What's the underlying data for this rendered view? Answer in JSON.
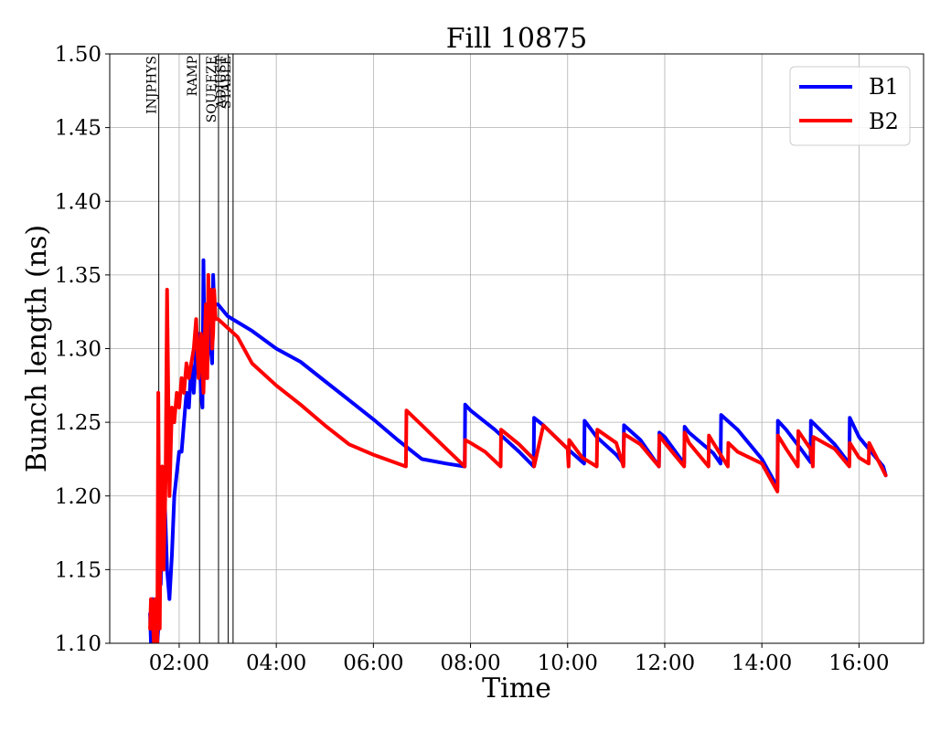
{
  "chart_data": {
    "type": "line",
    "title": "Fill 10875",
    "xlabel": "Time",
    "ylabel": "Bunch length (ns)",
    "x_unit": "hours",
    "xlim": [
      0.57,
      17.33
    ],
    "ylim": [
      1.1,
      1.5
    ],
    "x_ticks": [
      {
        "value": 2,
        "label": "02:00"
      },
      {
        "value": 4,
        "label": "04:00"
      },
      {
        "value": 6,
        "label": "06:00"
      },
      {
        "value": 8,
        "label": "08:00"
      },
      {
        "value": 10,
        "label": "10:00"
      },
      {
        "value": 12,
        "label": "12:00"
      },
      {
        "value": 14,
        "label": "14:00"
      },
      {
        "value": 16,
        "label": "16:00"
      }
    ],
    "y_ticks": [
      {
        "value": 1.1,
        "label": "1.10"
      },
      {
        "value": 1.15,
        "label": "1.15"
      },
      {
        "value": 1.2,
        "label": "1.20"
      },
      {
        "value": 1.25,
        "label": "1.25"
      },
      {
        "value": 1.3,
        "label": "1.30"
      },
      {
        "value": 1.35,
        "label": "1.35"
      },
      {
        "value": 1.4,
        "label": "1.40"
      },
      {
        "value": 1.45,
        "label": "1.45"
      },
      {
        "value": 1.5,
        "label": "1.50"
      }
    ],
    "grid": true,
    "legend_position": "top-right",
    "phases": [
      {
        "name": "INJPHYS",
        "x": 1.58
      },
      {
        "name": "RAMP",
        "x": 2.42
      },
      {
        "name": "SQUEEZE",
        "x": 2.81
      },
      {
        "name": "ADJUST",
        "x": 3.01
      },
      {
        "name": "STABLE",
        "x": 3.11
      }
    ],
    "series": [
      {
        "name": "B1",
        "color": "#0000ff",
        "x": [
          1.4,
          1.42,
          1.45,
          1.48,
          1.5,
          1.52,
          1.55,
          1.57,
          1.6,
          1.62,
          1.65,
          1.7,
          1.75,
          1.8,
          1.85,
          1.9,
          2.0,
          2.05,
          2.1,
          2.15,
          2.2,
          2.25,
          2.3,
          2.35,
          2.4,
          2.45,
          2.48,
          2.5,
          2.52,
          2.55,
          2.58,
          2.6,
          2.62,
          2.65,
          2.68,
          2.7,
          2.72,
          2.75,
          2.78,
          2.8,
          2.9,
          3.0,
          3.2,
          3.5,
          4.0,
          4.5,
          5.0,
          5.5,
          6.0,
          6.5,
          7.0,
          7.5,
          7.88,
          7.89,
          8.0,
          8.5,
          9.0,
          9.3,
          9.31,
          9.5,
          10.0,
          10.34,
          10.35,
          10.6,
          11.0,
          11.15,
          11.16,
          11.5,
          11.88,
          11.89,
          12.0,
          12.4,
          12.41,
          12.5,
          13.0,
          13.15,
          13.16,
          13.5,
          14.0,
          14.32,
          14.33,
          14.5,
          14.8,
          15.0,
          15.01,
          15.5,
          15.8,
          15.81,
          16.0,
          16.5,
          16.55
        ],
        "y": [
          1.12,
          1.1,
          1.13,
          1.105,
          1.11,
          1.12,
          1.1,
          1.11,
          1.16,
          1.14,
          1.21,
          1.2,
          1.15,
          1.13,
          1.16,
          1.2,
          1.23,
          1.23,
          1.25,
          1.27,
          1.26,
          1.29,
          1.27,
          1.3,
          1.31,
          1.27,
          1.26,
          1.36,
          1.3,
          1.28,
          1.29,
          1.31,
          1.34,
          1.3,
          1.29,
          1.35,
          1.33,
          1.33,
          1.33,
          1.33,
          1.326,
          1.322,
          1.318,
          1.312,
          1.3,
          1.291,
          1.278,
          1.265,
          1.252,
          1.238,
          1.225,
          1.222,
          1.22,
          1.262,
          1.258,
          1.245,
          1.23,
          1.22,
          1.253,
          1.248,
          1.232,
          1.222,
          1.251,
          1.24,
          1.228,
          1.222,
          1.248,
          1.238,
          1.22,
          1.243,
          1.24,
          1.222,
          1.247,
          1.243,
          1.229,
          1.222,
          1.255,
          1.245,
          1.225,
          1.206,
          1.251,
          1.245,
          1.232,
          1.223,
          1.251,
          1.235,
          1.222,
          1.253,
          1.24,
          1.22,
          1.214
        ]
      },
      {
        "name": "B2",
        "color": "#ff0000",
        "x": [
          1.4,
          1.42,
          1.45,
          1.48,
          1.5,
          1.52,
          1.55,
          1.57,
          1.6,
          1.62,
          1.65,
          1.68,
          1.7,
          1.72,
          1.75,
          1.8,
          1.85,
          1.9,
          1.95,
          2.0,
          2.05,
          2.1,
          2.15,
          2.2,
          2.25,
          2.3,
          2.35,
          2.4,
          2.45,
          2.5,
          2.52,
          2.55,
          2.58,
          2.6,
          2.62,
          2.65,
          2.68,
          2.7,
          2.72,
          2.75,
          2.8,
          3.0,
          3.2,
          3.5,
          4.0,
          4.5,
          5.0,
          5.5,
          6.0,
          6.67,
          6.68,
          7.0,
          7.5,
          7.88,
          7.89,
          8.0,
          8.3,
          8.62,
          8.63,
          9.0,
          9.3,
          9.31,
          9.5,
          10.0,
          10.02,
          10.03,
          10.3,
          10.6,
          10.61,
          11.0,
          11.15,
          11.16,
          11.5,
          11.88,
          11.89,
          12.0,
          12.4,
          12.41,
          12.5,
          12.9,
          12.91,
          13.0,
          13.3,
          13.31,
          13.5,
          14.0,
          14.32,
          14.33,
          14.5,
          14.74,
          14.75,
          15.0,
          15.05,
          15.06,
          15.5,
          15.8,
          15.81,
          16.0,
          16.2,
          16.21,
          16.55
        ],
        "y": [
          1.11,
          1.13,
          1.12,
          1.1,
          1.13,
          1.12,
          1.1,
          1.27,
          1.11,
          1.19,
          1.22,
          1.15,
          1.18,
          1.21,
          1.34,
          1.2,
          1.26,
          1.25,
          1.27,
          1.26,
          1.28,
          1.27,
          1.29,
          1.28,
          1.29,
          1.3,
          1.32,
          1.28,
          1.31,
          1.27,
          1.3,
          1.33,
          1.28,
          1.35,
          1.32,
          1.34,
          1.3,
          1.31,
          1.34,
          1.32,
          1.32,
          1.314,
          1.308,
          1.29,
          1.275,
          1.262,
          1.248,
          1.235,
          1.228,
          1.22,
          1.258,
          1.248,
          1.232,
          1.22,
          1.238,
          1.236,
          1.23,
          1.22,
          1.245,
          1.235,
          1.225,
          1.22,
          1.248,
          1.232,
          1.22,
          1.238,
          1.226,
          1.22,
          1.245,
          1.236,
          1.22,
          1.242,
          1.235,
          1.22,
          1.241,
          1.236,
          1.22,
          1.243,
          1.236,
          1.22,
          1.241,
          1.236,
          1.22,
          1.236,
          1.23,
          1.222,
          1.203,
          1.241,
          1.232,
          1.22,
          1.244,
          1.232,
          1.22,
          1.24,
          1.232,
          1.22,
          1.236,
          1.226,
          1.222,
          1.236,
          1.214
        ]
      }
    ]
  }
}
